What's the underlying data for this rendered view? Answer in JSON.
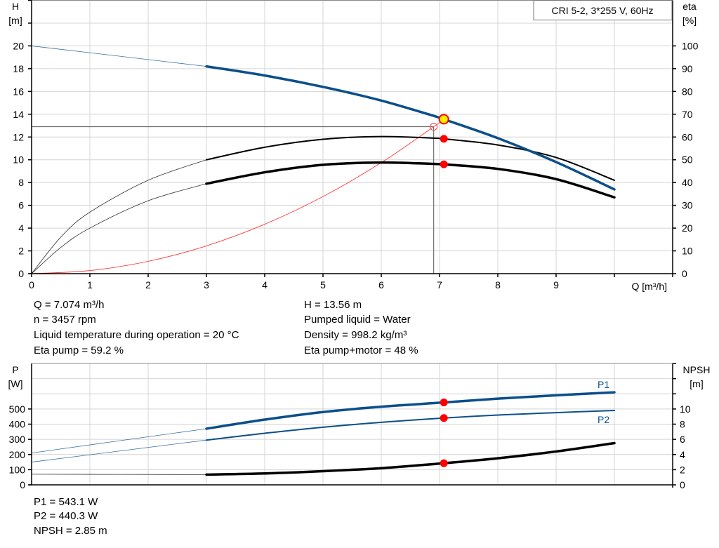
{
  "legend_box": "CRI 5-2, 3*255 V, 60Hz",
  "colors": {
    "head": "#0b4f8a",
    "efficiency": "#000000",
    "system": "#ff3b3b",
    "duty_point": "#ffee00",
    "marker": "#ff0000",
    "power": "#0b4f8a",
    "npsh": "#000000",
    "grid": "#d4d4d4"
  },
  "chart_data": [
    {
      "type": "line",
      "xlabel": "Q [m³/h]",
      "ylabel_left": {
        "name": "H",
        "unit": "[m]"
      },
      "ylabel_right": {
        "name": "eta",
        "unit": "[%]"
      },
      "xlim": [
        0,
        11
      ],
      "ylim_left": [
        0,
        24
      ],
      "ylim_right": [
        0,
        120
      ],
      "x_ticks": [
        "0",
        "1",
        "2",
        "3",
        "4",
        "5",
        "6",
        "7",
        "8",
        "9"
      ],
      "y_ticks_left": [
        "0",
        "2",
        "4",
        "6",
        "8",
        "10",
        "12",
        "14",
        "16",
        "18",
        "20"
      ],
      "y_ticks_right": [
        "0",
        "10",
        "20",
        "30",
        "40",
        "50",
        "60",
        "70",
        "80",
        "90",
        "100"
      ],
      "grid": true,
      "series": [
        {
          "id": "head",
          "axis": "left",
          "x": [
            0,
            1,
            2,
            3,
            4,
            5,
            6,
            7,
            7.074,
            8,
            9,
            10
          ],
          "y": [
            20,
            19.4,
            18.8,
            18.2,
            17.4,
            16.4,
            15.2,
            13.7,
            13.56,
            11.9,
            9.8,
            7.4
          ]
        },
        {
          "id": "eta_pump",
          "axis": "right",
          "x": [
            0,
            0.5,
            1,
            2,
            3,
            4,
            5,
            6,
            7,
            7.074,
            8,
            9,
            10
          ],
          "y": [
            0,
            16,
            27,
            41,
            50,
            55.5,
            59,
            60.2,
            59.4,
            59.2,
            56.5,
            51,
            41
          ]
        },
        {
          "id": "eta_pump_motor",
          "axis": "right",
          "x": [
            0,
            0.5,
            1,
            2,
            3,
            4,
            5,
            6,
            7,
            7.074,
            8,
            9,
            10
          ],
          "y": [
            0,
            11.5,
            20,
            32,
            39.5,
            44.5,
            47.8,
            48.8,
            48.1,
            48,
            46,
            41.5,
            33.5
          ]
        },
        {
          "id": "system",
          "axis": "left",
          "x": [
            0,
            1,
            2,
            3,
            4,
            5,
            6,
            6.9,
            7.074
          ],
          "y": [
            0,
            0.27,
            1.08,
            2.44,
            4.34,
            6.77,
            9.75,
            12.9,
            13.56
          ]
        }
      ],
      "reference_point": {
        "x": 6.9,
        "y": 12.9
      },
      "duty_point": {
        "x": 7.074,
        "head": 13.56,
        "eta_pump": 59.2,
        "eta_pump_motor": 48
      }
    },
    {
      "type": "line",
      "ylabel_left": {
        "name": "P",
        "unit": "[W]"
      },
      "ylabel_right": {
        "name": "NPSH",
        "unit": "[m]"
      },
      "xlim": [
        0,
        11
      ],
      "ylim_left": [
        0,
        800
      ],
      "ylim_right": [
        0,
        16
      ],
      "y_ticks_left": [
        "0",
        "100",
        "200",
        "300",
        "400",
        "500"
      ],
      "y_ticks_right": [
        "0",
        "2",
        "4",
        "6",
        "8",
        "10"
      ],
      "grid": true,
      "series": [
        {
          "id": "p1",
          "name": "P1",
          "axis": "left",
          "x": [
            0,
            3,
            4,
            5,
            6,
            7.074,
            8,
            9,
            10
          ],
          "y": [
            210,
            370,
            430,
            480,
            515,
            543.1,
            568,
            590,
            610
          ]
        },
        {
          "id": "p2",
          "name": "P2",
          "axis": "left",
          "x": [
            0,
            3,
            4,
            5,
            6,
            7.074,
            8,
            9,
            10
          ],
          "y": [
            150,
            295,
            340,
            380,
            412,
            440.3,
            460,
            476,
            490
          ]
        },
        {
          "id": "npsh",
          "axis": "right",
          "x": [
            0,
            3,
            4,
            5,
            6,
            7.074,
            8,
            9,
            10
          ],
          "y": [
            1.4,
            1.35,
            1.5,
            1.8,
            2.2,
            2.85,
            3.5,
            4.4,
            5.5
          ]
        }
      ],
      "duty_point": {
        "x": 7.074,
        "p1": 543.1,
        "p2": 440.3,
        "npsh": 2.85
      }
    }
  ],
  "info": {
    "left": [
      "Q = 7.074 m³/h",
      "n = 3457 rpm",
      "Liquid temperature during operation = 20 °C",
      "Eta pump = 59.2 %"
    ],
    "right": [
      "H = 13.56 m",
      "Pumped liquid = Water",
      "Density = 998.2 kg/m³",
      "Eta pump+motor = 48 %"
    ],
    "bottom": [
      "P1 = 543.1 W",
      "P2 = 440.3 W",
      "NPSH = 2.85 m"
    ]
  }
}
